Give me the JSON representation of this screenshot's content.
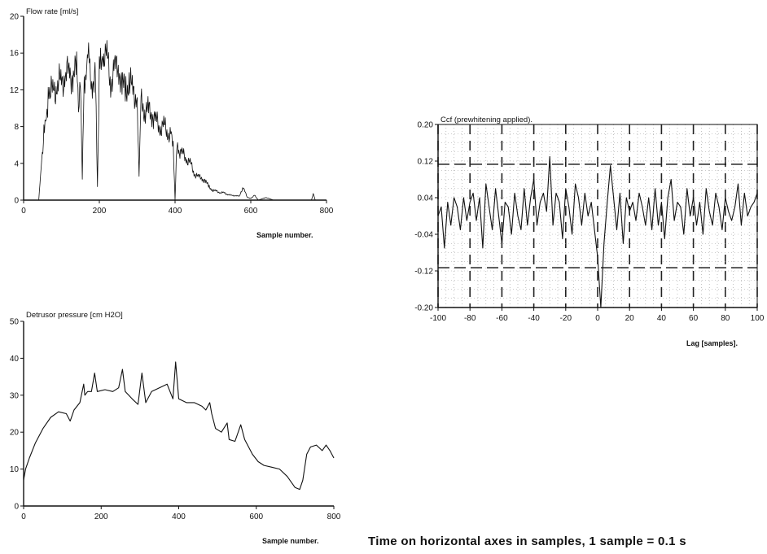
{
  "footer_note": "Time on horizontal axes in samples, 1 sample = 0.1 s",
  "chart_data": [
    {
      "id": "flow",
      "type": "line",
      "title": "Flow rate [ml/s]",
      "xlabel": "Sample number.",
      "ylabel": "",
      "xlim": [
        0,
        800
      ],
      "ylim": [
        0,
        20
      ],
      "xticks": [
        0,
        200,
        400,
        600,
        800
      ],
      "yticks": [
        0,
        4,
        8,
        12,
        16,
        20
      ],
      "grid": false,
      "series": [
        {
          "x": [
            0,
            40,
            48,
            55,
            60,
            65,
            70,
            80,
            90,
            100,
            110,
            120,
            130,
            140,
            145,
            150,
            155,
            160,
            165,
            170,
            175,
            180,
            190,
            195,
            200,
            205,
            210,
            220,
            230,
            240,
            250,
            260,
            270,
            280,
            290,
            300,
            305,
            310,
            320,
            330,
            340,
            350,
            360,
            370,
            380,
            390,
            395,
            400,
            405,
            410,
            420,
            430,
            440,
            450,
            460,
            470,
            480,
            490,
            500,
            510,
            520,
            530,
            540,
            550,
            560,
            570,
            580,
            590,
            600,
            610,
            620,
            640,
            660,
            680,
            700,
            760,
            765,
            770,
            800
          ],
          "y": [
            0,
            0,
            4.5,
            8,
            9.5,
            10.5,
            11.5,
            12,
            12.5,
            13,
            13.5,
            14,
            13.5,
            14,
            10,
            14,
            2,
            13,
            14.5,
            15,
            15,
            13,
            13.5,
            1.5,
            14,
            15,
            16,
            15.5,
            13,
            14,
            15,
            12,
            12.5,
            12.5,
            12,
            11,
            3,
            10.5,
            10,
            9.5,
            9.5,
            8.5,
            8,
            8,
            7.5,
            7,
            6.5,
            0,
            6,
            5.5,
            5,
            4.5,
            4,
            3,
            2.5,
            2.5,
            2,
            1.5,
            1,
            1,
            0.8,
            0.8,
            0.6,
            0.5,
            0.5,
            0.4,
            1.5,
            0.3,
            0.2,
            0.5,
            0,
            0.3,
            0,
            0,
            0,
            0,
            0.7,
            0,
            0
          ]
        }
      ]
    },
    {
      "id": "detrusor",
      "type": "line",
      "title": "Detrusor pressure [cm H2O]",
      "xlabel": "Sample number.",
      "ylabel": "",
      "xlim": [
        0,
        800
      ],
      "ylim": [
        0,
        50
      ],
      "xticks": [
        0,
        200,
        400,
        600,
        800
      ],
      "yticks": [
        0,
        10,
        20,
        30,
        40,
        50
      ],
      "grid": false,
      "series": [
        {
          "x": [
            0,
            5,
            15,
            30,
            50,
            70,
            90,
            110,
            120,
            130,
            145,
            155,
            158,
            165,
            175,
            183,
            190,
            210,
            230,
            245,
            255,
            262,
            280,
            295,
            305,
            315,
            330,
            350,
            370,
            385,
            392,
            400,
            420,
            440,
            460,
            470,
            480,
            485,
            495,
            510,
            525,
            530,
            545,
            560,
            570,
            590,
            605,
            620,
            640,
            660,
            680,
            700,
            712,
            720,
            730,
            740,
            755,
            770,
            780,
            790,
            800
          ],
          "y": [
            7,
            10,
            13,
            17,
            21,
            24,
            25.5,
            25,
            23,
            26,
            28,
            33,
            30,
            31,
            31,
            36,
            31,
            31.5,
            31,
            32,
            37,
            31,
            29,
            27.5,
            36,
            28,
            31,
            32,
            33,
            29,
            39,
            29,
            28,
            28,
            27,
            26,
            28,
            25,
            21,
            20,
            22.5,
            18,
            17.5,
            22,
            18,
            14,
            12,
            11,
            10.5,
            10,
            8,
            5,
            4.5,
            7,
            14,
            16,
            16.5,
            15,
            16.5,
            15,
            13
          ]
        }
      ]
    },
    {
      "id": "ccf",
      "type": "line",
      "title": "Ccf (prewhitening applied).",
      "xlabel": "Lag [samples].",
      "ylabel": "",
      "xlim": [
        -100,
        100
      ],
      "ylim": [
        -0.2,
        0.2
      ],
      "xticks": [
        -100,
        -80,
        -60,
        -40,
        -20,
        0,
        20,
        40,
        60,
        80,
        100
      ],
      "yticks": [
        -0.2,
        -0.12,
        -0.04,
        0.04,
        0.12,
        0.2
      ],
      "ytick_labels": [
        "-0.20",
        "-0.12",
        "-0.04",
        "0.04",
        "0.12",
        "0.20"
      ],
      "grid": true,
      "confidence_limits": [
        0.113,
        -0.113
      ],
      "series": [
        {
          "x": [
            -100,
            -98,
            -96,
            -94,
            -92,
            -90,
            -88,
            -86,
            -84,
            -82,
            -80,
            -78,
            -76,
            -74,
            -72,
            -70,
            -68,
            -66,
            -64,
            -62,
            -60,
            -58,
            -56,
            -54,
            -52,
            -50,
            -48,
            -46,
            -44,
            -42,
            -40,
            -38,
            -36,
            -34,
            -32,
            -30,
            -28,
            -26,
            -24,
            -22,
            -20,
            -18,
            -16,
            -14,
            -12,
            -10,
            -8,
            -6,
            -4,
            -2,
            0,
            2,
            4,
            6,
            8,
            10,
            12,
            14,
            16,
            18,
            20,
            22,
            24,
            26,
            28,
            30,
            32,
            34,
            36,
            38,
            40,
            42,
            44,
            46,
            48,
            50,
            52,
            54,
            56,
            58,
            60,
            62,
            64,
            66,
            68,
            70,
            72,
            74,
            76,
            78,
            80,
            82,
            84,
            86,
            88,
            90,
            92,
            94,
            96,
            98,
            100
          ],
          "y": [
            0,
            0.02,
            -0.07,
            0.03,
            -0.02,
            0.04,
            0.02,
            -0.03,
            0.04,
            -0.01,
            0.03,
            0.05,
            -0.01,
            0.04,
            -0.07,
            0.07,
            0.02,
            -0.03,
            0.06,
            0.0,
            -0.06,
            0.03,
            0.02,
            -0.04,
            0.05,
            0.0,
            -0.03,
            0.06,
            -0.02,
            0.04,
            0.08,
            -0.02,
            0.03,
            0.05,
            0.01,
            0.13,
            -0.02,
            0.05,
            0.03,
            -0.05,
            0.06,
            0.02,
            -0.04,
            0.07,
            0.04,
            -0.02,
            0.05,
            0.0,
            0.03,
            -0.03,
            -0.09,
            -0.2,
            -0.06,
            0.03,
            0.11,
            0.04,
            -0.03,
            0.05,
            -0.06,
            0.04,
            0.01,
            0.03,
            -0.01,
            0.05,
            0.02,
            -0.02,
            0.04,
            -0.03,
            0.06,
            -0.02,
            0.03,
            -0.05,
            0.04,
            0.08,
            -0.01,
            0.03,
            0.02,
            -0.04,
            0.06,
            0.0,
            0.04,
            -0.02,
            0.03,
            -0.04,
            0.06,
            0.01,
            -0.02,
            0.05,
            0.02,
            -0.03,
            0.04,
            0.01,
            -0.01,
            0.02,
            0.07,
            -0.02,
            0.05,
            0.0,
            0.02,
            0.03,
            0.05
          ]
        }
      ]
    }
  ]
}
